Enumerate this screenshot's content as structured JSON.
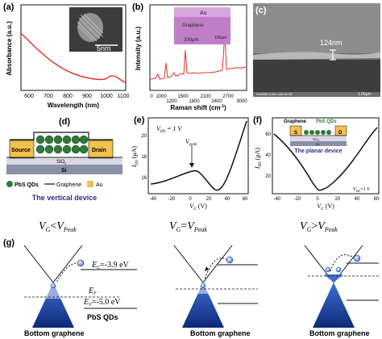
{
  "panels": {
    "a": {
      "label": "(a)",
      "ylabel": "Absorbance (a.u.)",
      "xlabel": "Wavelength (nm)",
      "xticks": [
        "600",
        "700",
        "800",
        "900",
        "1000",
        "1100"
      ],
      "inset_scale": "5nm"
    },
    "b": {
      "label": "(b)",
      "ylabel": "Intensity (a.u.)",
      "xlabel": "Raman shift (cm",
      "xlabel_sup": "-1",
      "xlabel_end": ")",
      "xticks": [
        "0",
        "1000",
        "1200",
        "1500",
        "1800",
        "2100",
        "2400",
        "2700",
        "3000"
      ],
      "inset_au": "Au",
      "inset_graphene": "Graphene",
      "inset_scale1": "200μm",
      "inset_scale2": "100μm"
    },
    "c": {
      "label": "(c)",
      "thickness": "124nm",
      "footer": "SU8000 5.0kV x40.0k SE",
      "scale": "1.00μm"
    },
    "d": {
      "label": "(d)",
      "source": "Source",
      "drain": "Drain",
      "sio2": "SiO",
      "sio2_sub": "2",
      "si": "Si",
      "legend_qd": "PbS QDs",
      "legend_gr": "Graphene",
      "legend_au": "Au",
      "caption": "The vertical device"
    },
    "e": {
      "label": "(e)",
      "vds": "V",
      "vds_sub": "DS",
      "vds_val": " = 1 V",
      "peak": "V",
      "peak_sub": "peak",
      "ylabel": "I",
      "ylabel_sub": "DS",
      "ylabel_unit": " (μA)",
      "xlabel": "V",
      "xlabel_sub": "G",
      "xlabel_unit": " (V)",
      "xticks": [
        "-40",
        "-20",
        "0",
        "20",
        "40",
        "60"
      ],
      "yticks": [
        "16",
        "18",
        "20"
      ]
    },
    "f": {
      "label": "(f)",
      "graphene": "Graphene",
      "pbs": "PbS QDs",
      "s": "S",
      "d": "D",
      "sio2": "SiO",
      "sio2_sub": "2",
      "si": "Si",
      "caption": "The planar device",
      "vds": "V",
      "vds_sub": "DS",
      "vds_val": "=1 V",
      "ylabel": "I",
      "ylabel_sub": "DS",
      "ylabel_unit": " (μA)",
      "xlabel": "V",
      "xlabel_sub": "G",
      "xlabel_unit": " (V)",
      "xticks": [
        "-40",
        "-20",
        "0",
        "20",
        "40",
        "60"
      ],
      "yticks": [
        "20",
        "40",
        "60"
      ]
    },
    "g": {
      "label": "(g)",
      "case1": "<",
      "case2": "=",
      "case3": ">",
      "vg": "V",
      "vg_sub": "G",
      "vpeak": "V",
      "vpeak_sub": "Peak",
      "ec": "E",
      "ec_sub": "C",
      "ec_val": "=-3.9 eV",
      "ef": "E",
      "ef_sub": "F",
      "ev": "E",
      "ev_sub": "V",
      "ev_val": "=-5.0 eV",
      "pbs": "PbS QDs",
      "bottom": "Bottom graphene"
    }
  },
  "colors": {
    "red_curve": "#e0302a",
    "black_curve": "#111111",
    "au": "#f2c14e",
    "qd_green": "#2f7a3a",
    "sio2": "#d9d9e6",
    "si": "#8a8fa8",
    "cone_blue": "#3f6fd0",
    "sem_gray": "#7a7a7a"
  }
}
